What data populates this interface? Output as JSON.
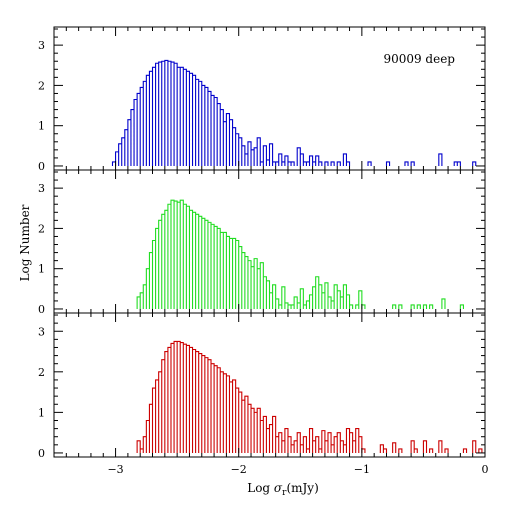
{
  "figure": {
    "annotation": "90009 deep",
    "xlabel_prefix": "Log ",
    "xlabel_sigma": "σ",
    "xlabel_sub": "r",
    "xlabel_suffix": "(mJy)",
    "ylabel": "Log Number"
  },
  "chart_data": [
    {
      "type": "histogram",
      "name": "90009 deep",
      "color": "#0000cc",
      "xlim": [
        -3.5,
        0
      ],
      "ylim": [
        -0.1,
        3.45
      ],
      "x_ticks": [
        -3,
        -2,
        -1,
        0
      ],
      "y_ticks": [
        0,
        1,
        2,
        3
      ],
      "y_tick_labels": [
        "0",
        "1",
        "2",
        "3"
      ],
      "bin_width": 0.025,
      "bins": [
        [
          -3.025,
          0.1
        ],
        [
          -3.0,
          0.35
        ],
        [
          -2.975,
          0.55
        ],
        [
          -2.95,
          0.7
        ],
        [
          -2.925,
          0.9
        ],
        [
          -2.9,
          1.15
        ],
        [
          -2.875,
          1.4
        ],
        [
          -2.85,
          1.65
        ],
        [
          -2.825,
          1.8
        ],
        [
          -2.8,
          1.95
        ],
        [
          -2.775,
          2.1
        ],
        [
          -2.75,
          2.25
        ],
        [
          -2.725,
          2.35
        ],
        [
          -2.7,
          2.45
        ],
        [
          -2.675,
          2.55
        ],
        [
          -2.65,
          2.58
        ],
        [
          -2.625,
          2.6
        ],
        [
          -2.6,
          2.62
        ],
        [
          -2.575,
          2.6
        ],
        [
          -2.55,
          2.58
        ],
        [
          -2.525,
          2.55
        ],
        [
          -2.5,
          2.45
        ],
        [
          -2.475,
          2.45
        ],
        [
          -2.45,
          2.4
        ],
        [
          -2.425,
          2.35
        ],
        [
          -2.4,
          2.3
        ],
        [
          -2.375,
          2.25
        ],
        [
          -2.35,
          2.15
        ],
        [
          -2.325,
          2.1
        ],
        [
          -2.3,
          2.0
        ],
        [
          -2.275,
          1.95
        ],
        [
          -2.25,
          1.85
        ],
        [
          -2.225,
          1.75
        ],
        [
          -2.2,
          1.7
        ],
        [
          -2.175,
          1.55
        ],
        [
          -2.15,
          1.4
        ],
        [
          -2.125,
          1.1
        ],
        [
          -2.1,
          1.3
        ],
        [
          -2.075,
          1.15
        ],
        [
          -2.05,
          0.95
        ],
        [
          -2.025,
          0.8
        ],
        [
          -2.0,
          0.7
        ],
        [
          -1.975,
          0.5
        ],
        [
          -1.95,
          0.3
        ],
        [
          -1.925,
          0.6
        ],
        [
          -1.9,
          0.4
        ],
        [
          -1.875,
          0.45
        ],
        [
          -1.85,
          0.7
        ],
        [
          -1.825,
          0.1
        ],
        [
          -1.8,
          0.5
        ],
        [
          -1.775,
          0.15
        ],
        [
          -1.75,
          0.55
        ],
        [
          -1.725,
          0.1
        ],
        [
          -1.7,
          0.1
        ],
        [
          -1.675,
          0.3
        ],
        [
          -1.65,
          0.1
        ],
        [
          -1.625,
          0.25
        ],
        [
          -1.6,
          0.1
        ],
        [
          -1.575,
          0.1
        ],
        [
          -1.525,
          0.45
        ],
        [
          -1.5,
          0.3
        ],
        [
          -1.475,
          0.1
        ],
        [
          -1.45,
          0.1
        ],
        [
          -1.425,
          0.25
        ],
        [
          -1.4,
          0.1
        ],
        [
          -1.375,
          0.25
        ],
        [
          -1.35,
          0.1
        ],
        [
          -1.3,
          0.1
        ],
        [
          -1.25,
          0.1
        ],
        [
          -1.2,
          0.1
        ],
        [
          -1.15,
          0.3
        ],
        [
          -1.125,
          0.1
        ],
        [
          -0.95,
          0.1
        ],
        [
          -0.8,
          0.1
        ],
        [
          -0.65,
          0.1
        ],
        [
          -0.6,
          0.1
        ],
        [
          -0.375,
          0.3
        ],
        [
          -0.25,
          0.1
        ],
        [
          -0.225,
          0.1
        ],
        [
          -0.1,
          0.1
        ]
      ]
    },
    {
      "type": "histogram",
      "color": "#22dd22",
      "xlim": [
        -3.5,
        0
      ],
      "ylim": [
        -0.1,
        3.45
      ],
      "x_ticks": [
        -3,
        -2,
        -1,
        0
      ],
      "y_ticks": [
        0,
        1,
        2,
        3
      ],
      "y_tick_labels": [
        "0",
        "1",
        "2",
        "3"
      ],
      "bin_width": 0.025,
      "bins": [
        [
          -2.825,
          0.3
        ],
        [
          -2.8,
          0.4
        ],
        [
          -2.775,
          0.6
        ],
        [
          -2.75,
          1.0
        ],
        [
          -2.725,
          1.4
        ],
        [
          -2.7,
          1.7
        ],
        [
          -2.675,
          2.0
        ],
        [
          -2.65,
          2.2
        ],
        [
          -2.625,
          2.35
        ],
        [
          -2.6,
          2.45
        ],
        [
          -2.575,
          2.6
        ],
        [
          -2.55,
          2.7
        ],
        [
          -2.525,
          2.68
        ],
        [
          -2.5,
          2.65
        ],
        [
          -2.475,
          2.7
        ],
        [
          -2.45,
          2.6
        ],
        [
          -2.425,
          2.55
        ],
        [
          -2.4,
          2.45
        ],
        [
          -2.375,
          2.4
        ],
        [
          -2.35,
          2.35
        ],
        [
          -2.325,
          2.3
        ],
        [
          -2.3,
          2.25
        ],
        [
          -2.275,
          2.2
        ],
        [
          -2.25,
          2.15
        ],
        [
          -2.225,
          2.1
        ],
        [
          -2.2,
          2.05
        ],
        [
          -2.175,
          2.0
        ],
        [
          -2.15,
          1.9
        ],
        [
          -2.125,
          1.9
        ],
        [
          -2.1,
          1.8
        ],
        [
          -2.075,
          1.75
        ],
        [
          -2.05,
          1.75
        ],
        [
          -2.025,
          1.7
        ],
        [
          -2.0,
          1.55
        ],
        [
          -1.975,
          1.4
        ],
        [
          -1.95,
          1.3
        ],
        [
          -1.925,
          1.2
        ],
        [
          -1.9,
          1.05
        ],
        [
          -1.875,
          1.25
        ],
        [
          -1.85,
          1.0
        ],
        [
          -1.825,
          1.15
        ],
        [
          -1.8,
          0.8
        ],
        [
          -1.775,
          0.7
        ],
        [
          -1.75,
          0.4
        ],
        [
          -1.725,
          0.6
        ],
        [
          -1.7,
          0.25
        ],
        [
          -1.675,
          0.1
        ],
        [
          -1.65,
          0.55
        ],
        [
          -1.625,
          0.15
        ],
        [
          -1.6,
          0.1
        ],
        [
          -1.575,
          0.1
        ],
        [
          -1.55,
          0.3
        ],
        [
          -1.525,
          0.15
        ],
        [
          -1.5,
          0.5
        ],
        [
          -1.475,
          0.1
        ],
        [
          -1.45,
          0.2
        ],
        [
          -1.425,
          0.35
        ],
        [
          -1.4,
          0.55
        ],
        [
          -1.375,
          0.8
        ],
        [
          -1.35,
          0.6
        ],
        [
          -1.325,
          0.4
        ],
        [
          -1.3,
          0.65
        ],
        [
          -1.275,
          0.3
        ],
        [
          -1.25,
          0.2
        ],
        [
          -1.225,
          0.6
        ],
        [
          -1.2,
          0.45
        ],
        [
          -1.175,
          0.3
        ],
        [
          -1.15,
          0.6
        ],
        [
          -1.125,
          0.35
        ],
        [
          -1.1,
          0.1
        ],
        [
          -1.05,
          0.1
        ],
        [
          -1.025,
          0.45
        ],
        [
          -1.0,
          0.1
        ],
        [
          -0.75,
          0.1
        ],
        [
          -0.7,
          0.1
        ],
        [
          -0.6,
          0.1
        ],
        [
          -0.55,
          0.1
        ],
        [
          -0.5,
          0.1
        ],
        [
          -0.45,
          0.1
        ],
        [
          -0.35,
          0.25
        ],
        [
          -0.2,
          0.1
        ]
      ]
    },
    {
      "type": "histogram",
      "color": "#cc0000",
      "xlim": [
        -3.5,
        0
      ],
      "ylim": [
        -0.1,
        3.45
      ],
      "x_ticks": [
        -3,
        -2,
        -1,
        0
      ],
      "x_tick_labels": [
        "−3",
        "−2",
        "−1",
        "0"
      ],
      "y_ticks": [
        0,
        1,
        2,
        3
      ],
      "y_tick_labels": [
        "0",
        "1",
        "2",
        "3"
      ],
      "bin_width": 0.025,
      "bins": [
        [
          -2.825,
          0.3
        ],
        [
          -2.8,
          0.1
        ],
        [
          -2.775,
          0.4
        ],
        [
          -2.75,
          0.8
        ],
        [
          -2.725,
          1.2
        ],
        [
          -2.7,
          1.6
        ],
        [
          -2.675,
          1.8
        ],
        [
          -2.65,
          2.0
        ],
        [
          -2.625,
          2.3
        ],
        [
          -2.6,
          2.5
        ],
        [
          -2.575,
          2.6
        ],
        [
          -2.55,
          2.7
        ],
        [
          -2.525,
          2.75
        ],
        [
          -2.5,
          2.75
        ],
        [
          -2.475,
          2.72
        ],
        [
          -2.45,
          2.68
        ],
        [
          -2.425,
          2.65
        ],
        [
          -2.4,
          2.6
        ],
        [
          -2.375,
          2.55
        ],
        [
          -2.35,
          2.5
        ],
        [
          -2.325,
          2.45
        ],
        [
          -2.3,
          2.4
        ],
        [
          -2.275,
          2.35
        ],
        [
          -2.25,
          2.3
        ],
        [
          -2.225,
          2.2
        ],
        [
          -2.2,
          2.15
        ],
        [
          -2.175,
          2.1
        ],
        [
          -2.15,
          2.0
        ],
        [
          -2.125,
          1.95
        ],
        [
          -2.1,
          1.9
        ],
        [
          -2.075,
          1.75
        ],
        [
          -2.05,
          1.8
        ],
        [
          -2.025,
          1.6
        ],
        [
          -2.0,
          1.5
        ],
        [
          -1.975,
          1.3
        ],
        [
          -1.95,
          1.4
        ],
        [
          -1.925,
          1.2
        ],
        [
          -1.9,
          1.1
        ],
        [
          -1.875,
          1.0
        ],
        [
          -1.85,
          1.1
        ],
        [
          -1.825,
          0.8
        ],
        [
          -1.8,
          0.9
        ],
        [
          -1.775,
          0.6
        ],
        [
          -1.75,
          0.7
        ],
        [
          -1.725,
          0.9
        ],
        [
          -1.7,
          0.4
        ],
        [
          -1.675,
          0.5
        ],
        [
          -1.65,
          0.3
        ],
        [
          -1.625,
          0.6
        ],
        [
          -1.6,
          0.4
        ],
        [
          -1.575,
          0.2
        ],
        [
          -1.55,
          0.3
        ],
        [
          -1.525,
          0.5
        ],
        [
          -1.5,
          0.2
        ],
        [
          -1.475,
          0.4
        ],
        [
          -1.45,
          0.1
        ],
        [
          -1.425,
          0.6
        ],
        [
          -1.4,
          0.3
        ],
        [
          -1.375,
          0.4
        ],
        [
          -1.35,
          0.1
        ],
        [
          -1.325,
          0.55
        ],
        [
          -1.3,
          0.3
        ],
        [
          -1.275,
          0.5
        ],
        [
          -1.25,
          0.2
        ],
        [
          -1.225,
          0.4
        ],
        [
          -1.2,
          0.5
        ],
        [
          -1.175,
          0.3
        ],
        [
          -1.15,
          0.2
        ],
        [
          -1.125,
          0.6
        ],
        [
          -1.1,
          0.5
        ],
        [
          -1.075,
          0.3
        ],
        [
          -1.05,
          0.6
        ],
        [
          -1.025,
          0.4
        ],
        [
          -1.0,
          0.1
        ],
        [
          -0.85,
          0.2
        ],
        [
          -0.825,
          0.1
        ],
        [
          -0.75,
          0.25
        ],
        [
          -0.7,
          0.1
        ],
        [
          -0.6,
          0.3
        ],
        [
          -0.575,
          0.1
        ],
        [
          -0.5,
          0.3
        ],
        [
          -0.45,
          0.1
        ],
        [
          -0.375,
          0.3
        ],
        [
          -0.325,
          0.1
        ],
        [
          -0.175,
          0.1
        ],
        [
          -0.1,
          0.3
        ],
        [
          -0.05,
          0.1
        ]
      ]
    }
  ]
}
